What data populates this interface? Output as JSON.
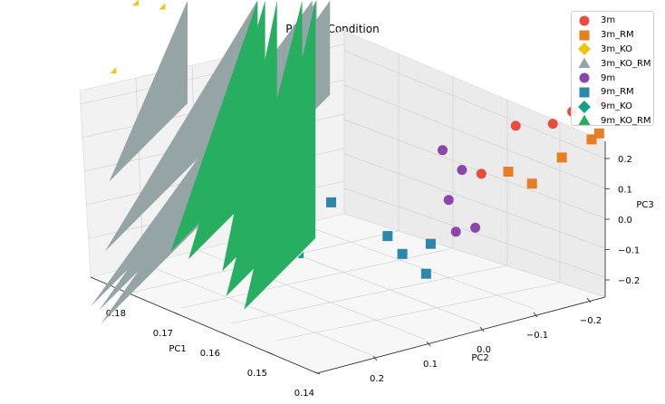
{
  "chart_data": {
    "type": "scatter3d",
    "title": "PCA by Condition",
    "xlabel": "PC1",
    "ylabel": "PC2",
    "zlabel": "PC3",
    "x_ticks": [
      "0.18",
      "0.17",
      "0.16",
      "0.15",
      "0.14"
    ],
    "y_ticks": [
      "0.2",
      "0.1",
      "0.0",
      "−0.1",
      "−0.2"
    ],
    "z_ticks": [
      "0.2",
      "0.1",
      "0.0",
      "−0.1",
      "−0.2"
    ],
    "legend_position": "top-right",
    "grid": true,
    "series": [
      {
        "name": "3m",
        "color": "#e74c3c",
        "marker": "circle",
        "points": [
          [
            0.151,
            -0.21,
            0.14
          ],
          [
            0.149,
            -0.18,
            0.12
          ],
          [
            0.152,
            -0.13,
            0.09
          ],
          [
            0.148,
            -0.16,
            0.1
          ],
          [
            0.147,
            -0.09,
            0.02
          ]
        ]
      },
      {
        "name": "3m_RM",
        "color": "#e67e22",
        "marker": "square",
        "points": [
          [
            0.15,
            -0.2,
            0.09
          ],
          [
            0.152,
            -0.21,
            0.1
          ],
          [
            0.149,
            -0.17,
            0.06
          ],
          [
            0.15,
            -0.12,
            0.03
          ],
          [
            0.148,
            -0.14,
            0.02
          ]
        ]
      },
      {
        "name": "3m_KO",
        "color": "#f1c40f",
        "marker": "diamond",
        "points": [
          [
            0.175,
            0.2,
            0.16
          ],
          [
            0.173,
            0.19,
            0.19
          ],
          [
            0.171,
            0.18,
            0.16
          ],
          [
            0.178,
            0.18,
            0.21
          ],
          [
            0.176,
            0.22,
            0.07
          ]
        ]
      },
      {
        "name": "3m_KO_RM",
        "color": "#95a5a6",
        "marker": "triangle",
        "points": [
          [
            0.163,
            0.05,
            0.09
          ],
          [
            0.16,
            0.05,
            0.08
          ],
          [
            0.158,
            0.04,
            0.08
          ],
          [
            0.165,
            0.1,
            0.06
          ],
          [
            0.17,
            0.16,
            0.04
          ]
        ]
      },
      {
        "name": "9m",
        "color": "#8e44ad",
        "marker": "circle",
        "points": [
          [
            0.145,
            -0.05,
            0.04
          ],
          [
            0.146,
            -0.07,
            0.02
          ],
          [
            0.148,
            -0.06,
            -0.02
          ],
          [
            0.144,
            -0.08,
            -0.05
          ],
          [
            0.143,
            -0.06,
            -0.06
          ]
        ]
      },
      {
        "name": "9m_RM",
        "color": "#2e86ab",
        "marker": "square",
        "points": [
          [
            0.15,
            0.05,
            -0.05
          ],
          [
            0.147,
            0.0,
            -0.08
          ],
          [
            0.144,
            -0.01,
            -0.1
          ],
          [
            0.146,
            -0.04,
            -0.08
          ],
          [
            0.142,
            -0.03,
            -0.12
          ]
        ]
      },
      {
        "name": "9m_KO",
        "color": "#16a085",
        "marker": "diamond",
        "points": [
          [
            0.18,
            0.1,
            -0.05
          ],
          [
            0.178,
            0.08,
            -0.07
          ],
          [
            0.179,
            0.09,
            -0.1
          ],
          [
            0.175,
            0.06,
            -0.07
          ],
          [
            0.169,
            0.05,
            -0.12
          ]
        ]
      },
      {
        "name": "9m_KO_RM",
        "color": "#27ae60",
        "marker": "triangle",
        "points": [
          [
            0.172,
            0.09,
            -0.02
          ],
          [
            0.174,
            0.08,
            -0.04
          ],
          [
            0.173,
            0.07,
            -0.08
          ],
          [
            0.17,
            0.05,
            -0.08
          ],
          [
            0.168,
            0.04,
            -0.1
          ]
        ]
      }
    ]
  }
}
